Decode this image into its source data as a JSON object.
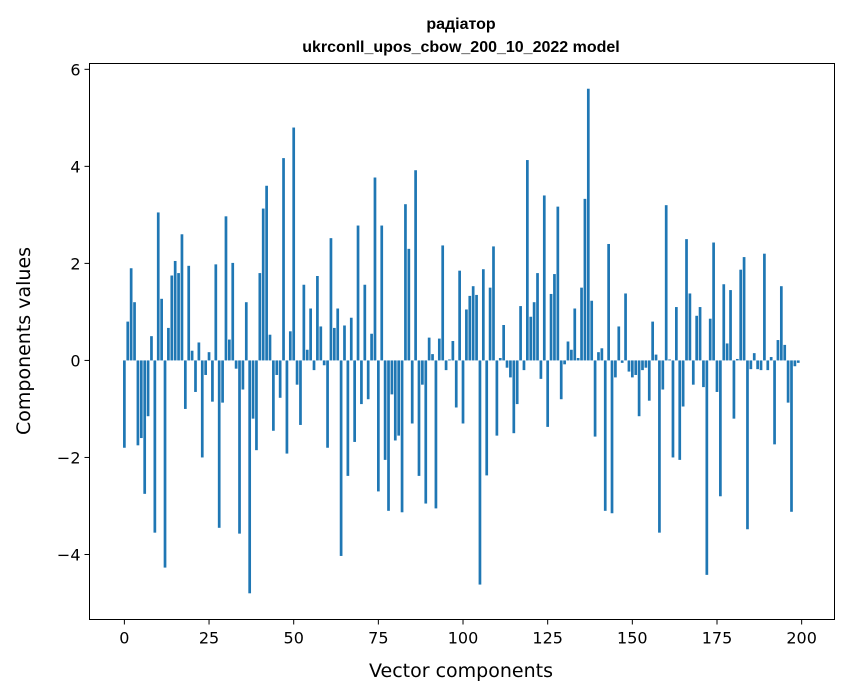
{
  "chart_data": {
    "type": "bar",
    "title": "радіатор",
    "subtitle": "ukrconll_upos_cbow_200_10_2022 model",
    "xlabel": "Vector components",
    "ylabel": "Components values",
    "xlim": [
      -10.3,
      209.7
    ],
    "ylim": [
      -5.34,
      6.12
    ],
    "xticks": [
      0,
      25,
      50,
      75,
      100,
      125,
      150,
      175,
      200
    ],
    "yticks": [
      -4,
      -2,
      0,
      2,
      4,
      6
    ],
    "ytick_labels": [
      "−4",
      "−2",
      "0",
      "2",
      "4",
      "6"
    ],
    "grid": false,
    "color": "#1f77b4",
    "values": [
      -1.8,
      0.8,
      1.9,
      1.2,
      -1.75,
      -1.6,
      -2.75,
      -1.15,
      0.5,
      -3.55,
      3.05,
      1.27,
      -4.27,
      0.67,
      1.75,
      2.05,
      1.8,
      2.6,
      -1.0,
      1.95,
      0.2,
      -0.65,
      0.37,
      -2.0,
      -0.3,
      0.17,
      -0.85,
      1.98,
      -3.45,
      -0.87,
      2.97,
      0.43,
      2.01,
      -0.17,
      -3.57,
      -0.6,
      1.2,
      -4.8,
      -1.2,
      -1.85,
      1.8,
      3.13,
      3.6,
      0.53,
      -1.45,
      -0.3,
      -0.77,
      4.17,
      -1.92,
      0.6,
      4.8,
      -0.5,
      -1.33,
      1.56,
      0.22,
      1.07,
      -0.2,
      1.74,
      0.7,
      -0.1,
      -1.8,
      2.52,
      0.67,
      1.07,
      -4.03,
      0.72,
      -2.38,
      0.88,
      -1.68,
      2.78,
      -0.9,
      1.56,
      -0.8,
      0.55,
      3.77,
      -2.7,
      2.78,
      -2.05,
      -3.1,
      -0.7,
      -1.65,
      -1.55,
      -3.13,
      3.22,
      2.3,
      -1.3,
      3.92,
      -2.38,
      -0.5,
      -2.95,
      0.47,
      0.13,
      -3.05,
      0.45,
      2.37,
      -0.2,
      0.02,
      0.4,
      -0.97,
      1.85,
      -1.3,
      1.05,
      1.33,
      1.53,
      1.35,
      -4.62,
      1.88,
      -2.37,
      1.5,
      2.35,
      -1.55,
      0.05,
      0.73,
      -0.15,
      -0.35,
      -1.5,
      -0.9,
      1.12,
      -0.2,
      4.13,
      0.9,
      1.2,
      1.8,
      -0.38,
      3.4,
      -1.37,
      1.37,
      1.78,
      3.17,
      -0.8,
      -0.08,
      0.39,
      0.22,
      1.07,
      0.05,
      1.5,
      3.33,
      5.6,
      1.23,
      -1.57,
      0.17,
      0.25,
      -3.1,
      2.4,
      -3.15,
      -0.35,
      0.7,
      -0.05,
      1.38,
      -0.23,
      -0.35,
      -0.3,
      -1.15,
      -0.2,
      -0.15,
      -0.83,
      0.8,
      0.12,
      -3.55,
      -0.6,
      3.2,
      0.02,
      -2.0,
      1.1,
      -2.05,
      -0.95,
      2.5,
      1.38,
      -0.5,
      0.92,
      1.1,
      -0.55,
      -4.42,
      0.86,
      2.43,
      -0.65,
      -2.8,
      1.57,
      0.35,
      1.45,
      -1.2,
      0.03,
      1.87,
      2.13,
      -3.48,
      -0.18,
      0.15,
      -0.18,
      -0.2,
      2.2,
      -0.2,
      0.07,
      -1.73,
      0.42,
      1.53,
      0.32,
      -0.87,
      -3.12,
      -0.12,
      -0.05
    ]
  }
}
